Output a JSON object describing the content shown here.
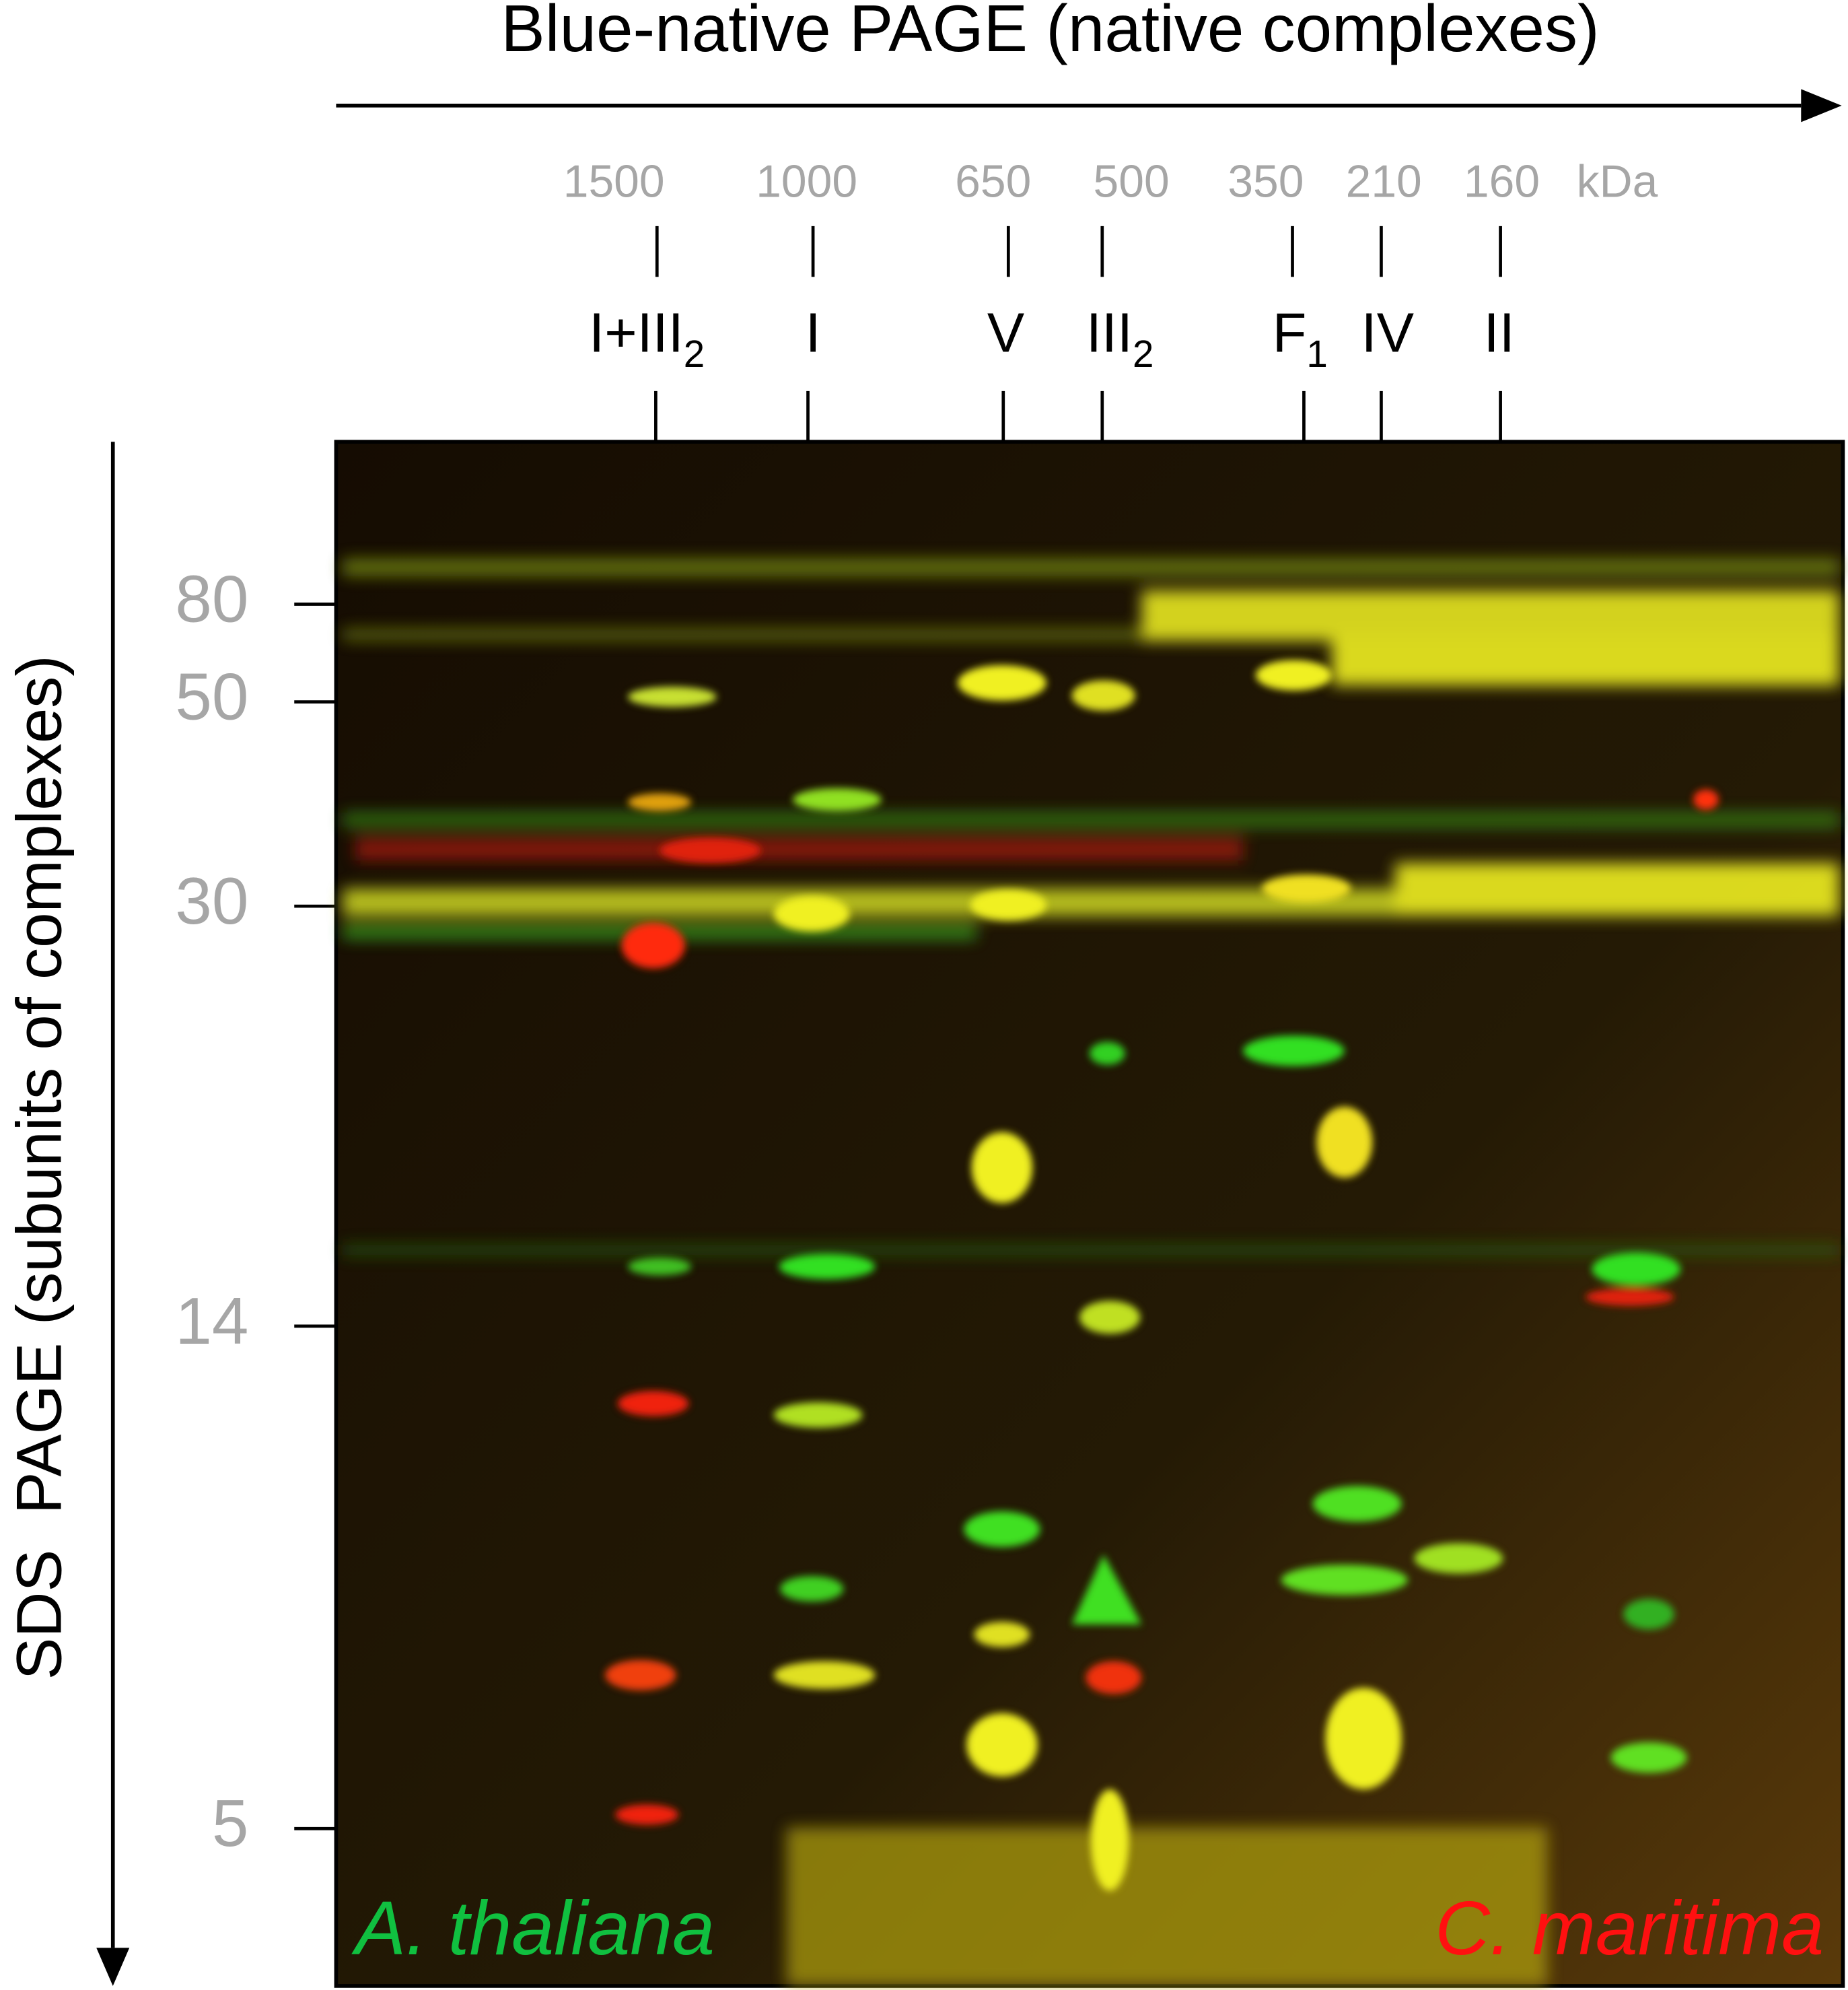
{
  "figure": {
    "x_axis_title": "Blue-native PAGE (native complexes)",
    "y_axis_title": "SDS  PAGE (subunits of complexes)",
    "mass_markers": [
      "1500",
      "1000",
      "650",
      "500",
      "350",
      "210",
      "160",
      "kDa"
    ],
    "complexes": [
      {
        "label": "I+III",
        "sub": "2"
      },
      {
        "label": "I",
        "sub": null
      },
      {
        "label": "V",
        "sub": null
      },
      {
        "label": "III",
        "sub": "2"
      },
      {
        "label": "F",
        "sub": "1"
      },
      {
        "label": "IV",
        "sub": null
      },
      {
        "label": "II",
        "sub": null
      }
    ],
    "y_ticks": [
      "80",
      "50",
      "30",
      "14",
      "5"
    ],
    "species_green": "A. thaliana",
    "species_red": "C. maritima"
  }
}
